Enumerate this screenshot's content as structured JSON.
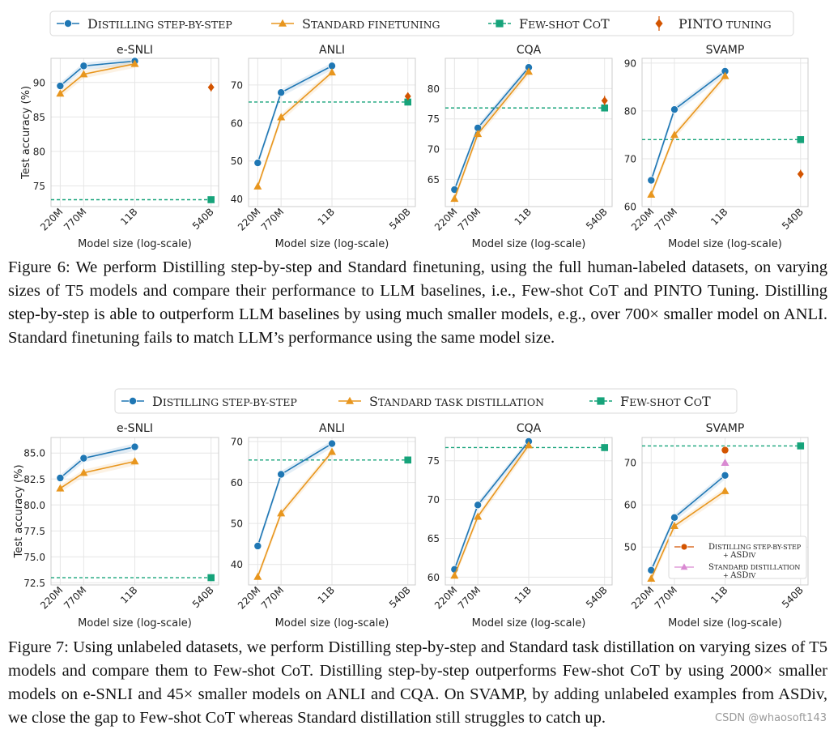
{
  "colors": {
    "distill": "#1f77b4",
    "standard": "#e8961e",
    "fewshot": "#16a37a",
    "pinto": "#d35400",
    "asdiv_distill": "#d35400",
    "asdiv_standard": "#d98ad2",
    "grid": "#e6e6e6",
    "axis": "#cccccc"
  },
  "chart_data": [
    {
      "figure": "Figure 6",
      "legend": [
        {
          "key": "distill",
          "label": "Distilling step-by-step",
          "marker": "circle"
        },
        {
          "key": "standard",
          "label": "Standard finetuning",
          "marker": "triangle"
        },
        {
          "key": "fewshot",
          "label": "Few-shot CoT",
          "marker": "square"
        },
        {
          "key": "pinto",
          "label": "PINTO tuning",
          "marker": "diamond"
        }
      ],
      "xlabel": "Model size (log-scale)",
      "ylabel": "Test accuracy (%)",
      "x_ticks": [
        "220M",
        "770M",
        "11B",
        "540B"
      ],
      "panels": [
        {
          "type": "line",
          "title": "e-SNLI",
          "ylim": [
            72,
            93.5
          ],
          "yticks": [
            75,
            80,
            85,
            90
          ],
          "series": [
            {
              "key": "distill",
              "x": [
                "220M",
                "770M",
                "11B"
              ],
              "values": [
                89.5,
                92.4,
                93.1
              ]
            },
            {
              "key": "standard",
              "x": [
                "220M",
                "770M",
                "11B"
              ],
              "values": [
                88.4,
                91.2,
                92.7
              ]
            }
          ],
          "fewshot": 73.0,
          "pinto": 89.3,
          "pinto_err": 0.6
        },
        {
          "type": "line",
          "title": "ANLI",
          "ylim": [
            38,
            77
          ],
          "yticks": [
            40,
            50,
            60,
            70
          ],
          "series": [
            {
              "key": "distill",
              "x": [
                "220M",
                "770M",
                "11B"
              ],
              "values": [
                49.5,
                68.0,
                75.0
              ]
            },
            {
              "key": "standard",
              "x": [
                "220M",
                "770M",
                "11B"
              ],
              "values": [
                43.3,
                61.5,
                73.3
              ]
            }
          ],
          "fewshot": 65.5,
          "pinto": 67.0,
          "pinto_err": 1.0
        },
        {
          "type": "line",
          "title": "CQA",
          "ylim": [
            60.5,
            85
          ],
          "yticks": [
            65,
            70,
            75,
            80
          ],
          "series": [
            {
              "key": "distill",
              "x": [
                "220M",
                "770M",
                "11B"
              ],
              "values": [
                63.3,
                73.5,
                83.5
              ]
            },
            {
              "key": "standard",
              "x": [
                "220M",
                "770M",
                "11B"
              ],
              "values": [
                61.8,
                72.5,
                82.8
              ]
            }
          ],
          "fewshot": 76.8,
          "pinto": 78.0,
          "pinto_err": 0.8
        },
        {
          "type": "line",
          "title": "SVAMP",
          "ylim": [
            60,
            91
          ],
          "yticks": [
            60,
            70,
            80,
            90
          ],
          "series": [
            {
              "key": "distill",
              "x": [
                "220M",
                "770M",
                "11B"
              ],
              "values": [
                65.5,
                80.3,
                88.3
              ]
            },
            {
              "key": "standard",
              "x": [
                "220M",
                "770M",
                "11B"
              ],
              "values": [
                62.5,
                75.0,
                87.3
              ]
            }
          ],
          "fewshot": 74.0,
          "pinto": 66.8,
          "pinto_err": 0.9
        }
      ]
    },
    {
      "figure": "Figure 7",
      "legend": [
        {
          "key": "distill",
          "label": "Distilling step-by-step",
          "marker": "circle"
        },
        {
          "key": "standard",
          "label": "Standard task distillation",
          "marker": "triangle"
        },
        {
          "key": "fewshot",
          "label": "Few-shot CoT",
          "marker": "square"
        }
      ],
      "xlabel": "Model size (log-scale)",
      "ylabel": "Test accuracy (%)",
      "x_ticks": [
        "220M",
        "770M",
        "11B",
        "540B"
      ],
      "panels": [
        {
          "type": "line",
          "title": "e-SNLI",
          "ylim": [
            72.3,
            86.5
          ],
          "yticks": [
            72.5,
            75.0,
            77.5,
            80.0,
            82.5,
            85.0
          ],
          "series": [
            {
              "key": "distill",
              "x": [
                "220M",
                "770M",
                "11B"
              ],
              "values": [
                82.6,
                84.5,
                85.6
              ]
            },
            {
              "key": "standard",
              "x": [
                "220M",
                "770M",
                "11B"
              ],
              "values": [
                81.6,
                83.1,
                84.2
              ]
            }
          ],
          "fewshot": 73.0
        },
        {
          "type": "line",
          "title": "ANLI",
          "ylim": [
            35,
            71
          ],
          "yticks": [
            40,
            50,
            60,
            70
          ],
          "series": [
            {
              "key": "distill",
              "x": [
                "220M",
                "770M",
                "11B"
              ],
              "values": [
                44.5,
                62.0,
                69.5
              ]
            },
            {
              "key": "standard",
              "x": [
                "220M",
                "770M",
                "11B"
              ],
              "values": [
                37.0,
                52.5,
                67.5
              ]
            }
          ],
          "fewshot": 65.5
        },
        {
          "type": "line",
          "title": "CQA",
          "ylim": [
            59,
            78
          ],
          "yticks": [
            60,
            65,
            70,
            75
          ],
          "series": [
            {
              "key": "distill",
              "x": [
                "220M",
                "770M",
                "11B"
              ],
              "values": [
                61.0,
                69.3,
                77.5
              ]
            },
            {
              "key": "standard",
              "x": [
                "220M",
                "770M",
                "11B"
              ],
              "values": [
                60.2,
                67.8,
                77.0
              ]
            }
          ],
          "fewshot": 76.7
        },
        {
          "type": "line",
          "title": "SVAMP",
          "ylim": [
            41,
            76
          ],
          "yticks": [
            50,
            60,
            70
          ],
          "series": [
            {
              "key": "distill",
              "x": [
                "220M",
                "770M",
                "11B"
              ],
              "values": [
                44.5,
                57.0,
                67.0
              ]
            },
            {
              "key": "standard",
              "x": [
                "220M",
                "770M",
                "11B"
              ],
              "values": [
                42.5,
                55.0,
                63.3
              ]
            }
          ],
          "fewshot": 74.0,
          "asdiv": [
            {
              "key": "asdiv_distill",
              "label_line1": "Distilling step-by-step",
              "label_line2": "+ ASDiv",
              "x": "11B",
              "value": 73.0,
              "marker": "circle"
            },
            {
              "key": "asdiv_standard",
              "label_line1": "Standard distillation",
              "label_line2": "+ ASDiv",
              "x": "11B",
              "value": 70.0,
              "marker": "triangle"
            }
          ]
        }
      ]
    }
  ],
  "captions": {
    "fig6_label": "Figure 6:",
    "fig6_text": "We perform Distilling step-by-step and Standard finetuning, using the full human-labeled datasets, on varying sizes of T5 models and compare their performance to LLM baselines, i.e., Few-shot CoT and PINTO Tuning. Distilling step-by-step is able to outperform LLM baselines by using much smaller models, e.g., over 700× smaller model on ANLI. Standard finetuning fails to match LLM’s performance using the same model size.",
    "fig7_label": "Figure 7:",
    "fig7_text": "Using unlabeled datasets, we perform Distilling step-by-step and Standard task distillation on varying sizes of T5 models and compare them to Few-shot CoT. Distilling step-by-step outperforms Few-shot CoT by using 2000× smaller models on e-SNLI and 45× smaller models on ANLI and CQA. On SVAMP, by adding unlabeled examples from ASDiv, we close the gap to Few-shot CoT whereas Standard distillation still struggles to catch up."
  },
  "watermark": "CSDN @whaosoft143"
}
